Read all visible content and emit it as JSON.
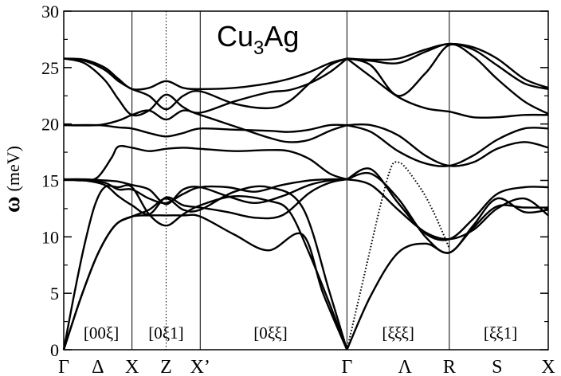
{
  "chart_data": {
    "type": "line",
    "title": "Cu",
    "title_sub": "3",
    "title_rest": "Ag",
    "ylabel_symbol": "ω",
    "ylabel_unit": "(meV)",
    "xlabel": "",
    "ylim": [
      0,
      30
    ],
    "yticks": [
      0,
      5,
      10,
      15,
      20,
      25,
      30
    ],
    "x_range": [
      0,
      7.1
    ],
    "symmetry_points": [
      {
        "label": "Γ",
        "x": 0
      },
      {
        "label": "Δ",
        "x": 0.5
      },
      {
        "label": "X",
        "x": 1.0
      },
      {
        "label": "Z",
        "x": 1.5
      },
      {
        "label": "X’",
        "x": 2.0
      },
      {
        "label": "Γ",
        "x": 4.15
      },
      {
        "label": "Λ",
        "x": 5.0
      },
      {
        "label": "R",
        "x": 5.65
      },
      {
        "label": "S",
        "x": 6.35
      },
      {
        "label": "X",
        "x": 7.1
      }
    ],
    "dividers": [
      {
        "x": 1.0,
        "style": "solid"
      },
      {
        "x": 1.5,
        "style": "dotted"
      },
      {
        "x": 2.0,
        "style": "solid"
      },
      {
        "x": 4.15,
        "style": "solid"
      },
      {
        "x": 5.65,
        "style": "solid"
      }
    ],
    "direction_labels": [
      {
        "text": "[00ξ]",
        "x": 0.55
      },
      {
        "text": "[0ξ1]",
        "x": 1.5
      },
      {
        "text": "[0ξξ]",
        "x": 3.03
      },
      {
        "text": "[ξξξ]",
        "x": 4.9
      },
      {
        "text": "[ξξ1]",
        "x": 6.4
      }
    ],
    "series": [
      {
        "style": "solid",
        "x": [
          0,
          0.25,
          0.5,
          0.75,
          1.0,
          1.25,
          1.5,
          1.75,
          2.0,
          2.5,
          3.0,
          3.5,
          3.8,
          4.15
        ],
        "y": [
          0,
          4.6,
          8.5,
          11.0,
          11.8,
          11.9,
          11.9,
          11.9,
          11.8,
          10.2,
          8.8,
          10.2,
          5.0,
          0
        ]
      },
      {
        "style": "solid",
        "x": [
          0,
          0.25,
          0.5,
          0.75,
          1.0,
          1.25,
          1.5,
          1.75,
          2.0,
          2.5,
          3.0,
          3.5,
          3.9,
          4.15
        ],
        "y": [
          0,
          4.6,
          8.5,
          11.0,
          11.8,
          12.4,
          13.4,
          12.4,
          12.4,
          14.0,
          14.4,
          12.6,
          5.0,
          0
        ]
      },
      {
        "style": "solid",
        "x": [
          0,
          0.15,
          0.3,
          0.45,
          0.6,
          0.8,
          1.0,
          1.25,
          1.5,
          1.75,
          2.0,
          2.5,
          3.0,
          3.3,
          3.6,
          3.9,
          4.15
        ],
        "y": [
          0,
          4.8,
          9.2,
          12.7,
          14.4,
          14.4,
          14.4,
          12.0,
          11.0,
          12.0,
          12.8,
          13.6,
          13.2,
          12.3,
          8.5,
          4.0,
          0
        ]
      },
      {
        "style": "solid",
        "x": [
          0,
          0.3,
          0.6,
          0.8,
          1.0,
          1.25,
          1.5,
          1.75,
          2.0,
          2.4,
          2.8,
          3.2,
          3.6,
          3.9,
          4.15
        ],
        "y": [
          15.1,
          15.0,
          14.6,
          13.6,
          12.8,
          12.0,
          13.5,
          12.8,
          12.6,
          12.2,
          11.7,
          11.9,
          13.9,
          14.8,
          15.1
        ]
      },
      {
        "style": "solid",
        "x": [
          0,
          0.3,
          0.6,
          0.8,
          1.0,
          1.25,
          1.5,
          1.75,
          2.0,
          2.4,
          2.8,
          3.2,
          3.6,
          3.9,
          4.15
        ],
        "y": [
          15.1,
          15.0,
          14.8,
          14.2,
          14.2,
          13.4,
          13.0,
          13.8,
          14.4,
          14.4,
          14.0,
          14.6,
          15.0,
          15.1,
          15.1
        ]
      },
      {
        "style": "solid",
        "x": [
          0,
          0.3,
          0.6,
          0.8,
          1.0,
          1.25,
          1.5,
          1.75,
          2.0,
          2.4,
          2.8,
          3.2,
          3.6,
          3.9,
          4.15
        ],
        "y": [
          15.1,
          15.1,
          15.0,
          14.9,
          14.6,
          14.2,
          12.9,
          14.2,
          14.4,
          13.6,
          13.0,
          13.6,
          14.6,
          15.0,
          15.1
        ]
      },
      {
        "style": "solid",
        "x": [
          0,
          0.3,
          0.5,
          0.7,
          0.8,
          1.0,
          1.25,
          1.5,
          1.75,
          2.0,
          2.5,
          3.0,
          3.3,
          3.6,
          3.9,
          4.15
        ],
        "y": [
          15.1,
          15.0,
          15.3,
          17.0,
          18.0,
          17.9,
          17.6,
          17.8,
          17.9,
          17.8,
          17.6,
          17.7,
          17.6,
          16.9,
          15.6,
          15.1
        ]
      },
      {
        "style": "solid",
        "x": [
          0,
          0.5,
          0.8,
          1.0,
          1.25,
          1.5,
          1.75,
          2.0,
          2.5,
          3.0,
          3.3,
          3.6,
          3.9,
          4.15
        ],
        "y": [
          19.9,
          19.9,
          19.7,
          19.6,
          19.2,
          18.9,
          19.2,
          19.6,
          19.5,
          19.4,
          19.3,
          19.5,
          19.9,
          19.9
        ]
      },
      {
        "style": "solid",
        "x": [
          0,
          0.5,
          0.8,
          1.0,
          1.25,
          1.5,
          1.75,
          2.0,
          2.5,
          3.0,
          3.3,
          3.6,
          3.9,
          4.15
        ],
        "y": [
          19.9,
          19.9,
          20.3,
          20.8,
          21.2,
          20.4,
          21.2,
          20.8,
          19.8,
          18.8,
          18.4,
          18.6,
          19.4,
          19.9
        ]
      },
      {
        "style": "solid",
        "x": [
          0,
          0.3,
          0.6,
          0.8,
          1.0,
          1.25,
          1.5,
          1.75,
          2.0,
          2.5,
          3.0,
          3.3,
          3.6,
          3.9,
          4.15
        ],
        "y": [
          25.8,
          25.4,
          23.9,
          22.2,
          20.8,
          21.2,
          22.6,
          21.5,
          21.0,
          22.0,
          22.8,
          23.0,
          23.6,
          24.6,
          25.8
        ]
      },
      {
        "style": "solid",
        "x": [
          0,
          0.3,
          0.6,
          0.8,
          1.0,
          1.25,
          1.5,
          1.75,
          2.0,
          2.5,
          3.0,
          3.3,
          3.6,
          3.9,
          4.15
        ],
        "y": [
          25.8,
          25.6,
          24.8,
          23.8,
          23.1,
          22.5,
          21.3,
          22.5,
          22.9,
          21.8,
          21.4,
          22.0,
          23.6,
          25.2,
          25.8
        ]
      },
      {
        "style": "solid",
        "x": [
          0,
          0.3,
          0.6,
          0.8,
          1.0,
          1.25,
          1.5,
          1.75,
          2.0,
          2.5,
          3.0,
          3.3,
          3.6,
          3.9,
          4.15
        ],
        "y": [
          25.8,
          25.7,
          25.0,
          24.0,
          23.1,
          23.2,
          23.8,
          23.2,
          23.1,
          23.2,
          23.6,
          24.0,
          24.6,
          25.4,
          25.8
        ]
      },
      {
        "style": "solid",
        "x": [
          4.15,
          4.5,
          4.9,
          5.3,
          5.65,
          6.0,
          6.35,
          6.75,
          7.1
        ],
        "y": [
          0,
          4.8,
          8.6,
          9.4,
          8.6,
          10.8,
          12.7,
          12.6,
          12.6
        ]
      },
      {
        "style": "solid",
        "x": [
          4.15,
          4.5,
          4.9,
          5.3,
          5.65,
          6.0,
          6.35,
          6.75,
          7.1
        ],
        "y": [
          15.1,
          14.6,
          12.4,
          10.4,
          9.8,
          10.6,
          12.5,
          13.4,
          11.9
        ]
      },
      {
        "style": "solid",
        "x": [
          4.15,
          4.5,
          4.9,
          5.3,
          5.65,
          6.0,
          6.35,
          6.75,
          7.1
        ],
        "y": [
          15.1,
          15.6,
          13.4,
          10.0,
          8.6,
          11.0,
          13.4,
          12.2,
          12.4
        ]
      },
      {
        "style": "solid",
        "x": [
          4.15,
          4.5,
          4.9,
          5.3,
          5.65,
          6.0,
          6.35,
          6.75,
          7.1
        ],
        "y": [
          15.1,
          16.0,
          13.0,
          10.3,
          9.8,
          11.6,
          13.8,
          14.4,
          14.4
        ]
      },
      {
        "style": "solid",
        "x": [
          4.15,
          4.5,
          4.9,
          5.3,
          5.65,
          6.0,
          6.35,
          6.75,
          7.1
        ],
        "y": [
          19.9,
          19.9,
          19.0,
          17.2,
          16.3,
          16.6,
          17.8,
          18.4,
          17.9
        ]
      },
      {
        "style": "solid",
        "x": [
          4.15,
          4.5,
          4.9,
          5.3,
          5.65,
          6.0,
          6.35,
          6.75,
          7.1
        ],
        "y": [
          19.9,
          19.3,
          17.6,
          16.5,
          16.3,
          17.2,
          18.6,
          19.6,
          19.6
        ]
      },
      {
        "style": "solid",
        "x": [
          4.15,
          4.5,
          4.9,
          5.3,
          5.65,
          6.0,
          6.35,
          6.75,
          7.1
        ],
        "y": [
          25.8,
          24.2,
          22.4,
          21.4,
          21.1,
          20.6,
          20.6,
          20.8,
          20.8
        ]
      },
      {
        "style": "solid",
        "x": [
          4.15,
          4.5,
          4.9,
          5.3,
          5.65,
          6.0,
          6.35,
          6.75,
          7.1
        ],
        "y": [
          25.8,
          25.2,
          22.5,
          24.5,
          27.0,
          26.0,
          24.0,
          22.0,
          20.9
        ]
      },
      {
        "style": "solid",
        "x": [
          4.15,
          4.5,
          4.9,
          5.3,
          5.65,
          6.0,
          6.35,
          6.75,
          7.1
        ],
        "y": [
          25.8,
          25.6,
          25.4,
          26.4,
          27.1,
          26.6,
          25.2,
          23.6,
          23.1
        ]
      },
      {
        "style": "solid",
        "x": [
          4.15,
          4.5,
          4.9,
          5.3,
          5.65,
          6.0,
          6.35,
          6.75,
          7.1
        ],
        "y": [
          25.8,
          25.7,
          25.8,
          26.6,
          27.1,
          26.8,
          25.8,
          24.0,
          23.2
        ]
      },
      {
        "style": "dotted",
        "x": [
          4.15,
          4.4,
          4.65,
          4.8,
          4.9,
          5.0,
          5.15,
          5.3,
          5.45,
          5.65
        ],
        "y": [
          0,
          6.5,
          13.0,
          16.2,
          16.6,
          16.2,
          15.0,
          13.6,
          11.8,
          9.0
        ]
      }
    ]
  }
}
